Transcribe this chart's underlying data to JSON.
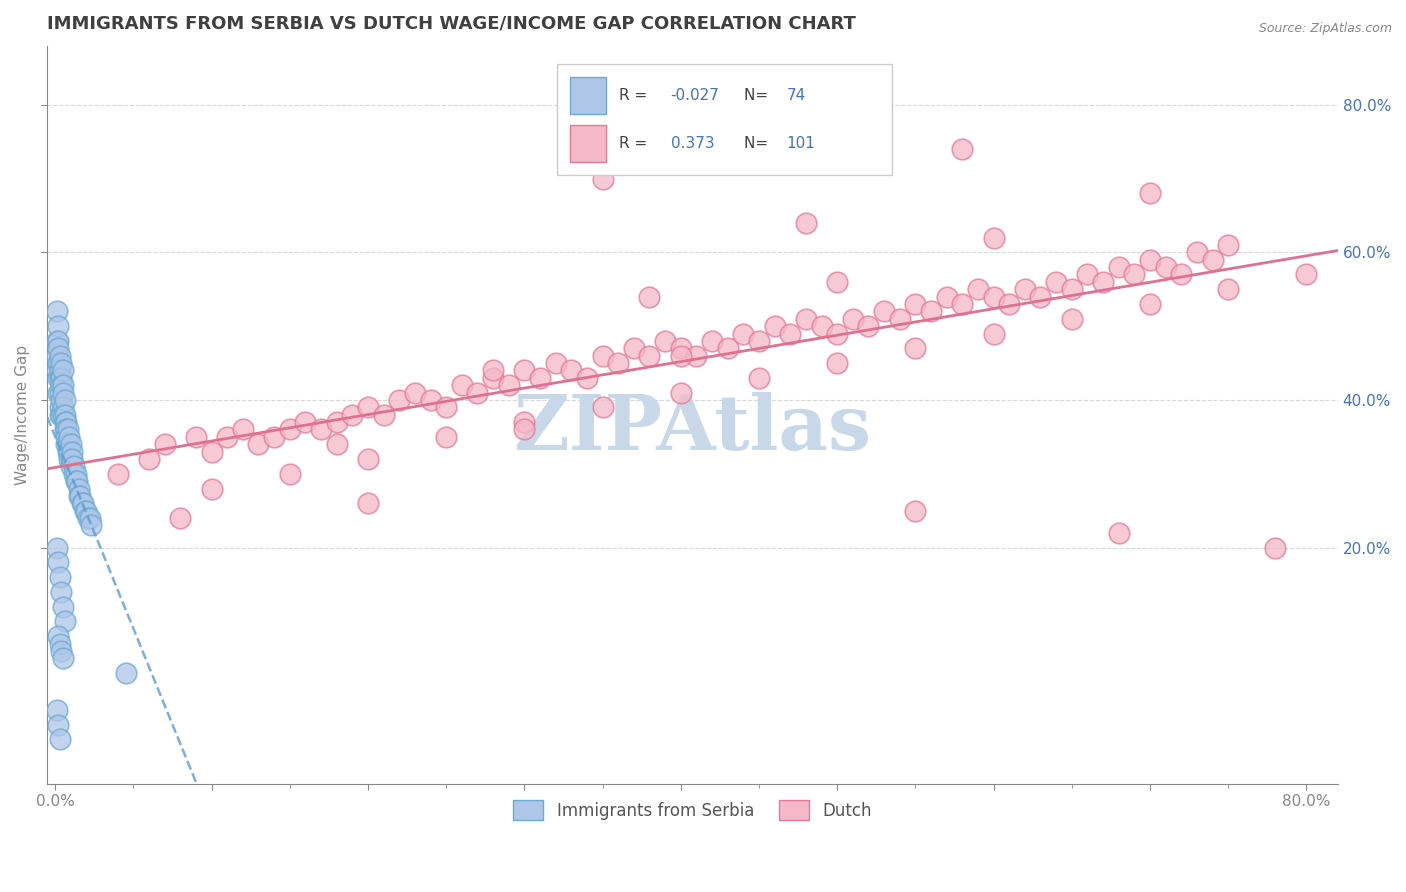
{
  "title": "IMMIGRANTS FROM SERBIA VS DUTCH WAGE/INCOME GAP CORRELATION CHART",
  "source": "Source: ZipAtlas.com",
  "ylabel": "Wage/Income Gap",
  "xlim": [
    -0.005,
    0.82
  ],
  "ylim": [
    -0.12,
    0.88
  ],
  "watermark": "ZIPAtlas",
  "series": [
    {
      "name": "Immigrants from Serbia",
      "R": -0.027,
      "N": 74,
      "color_fill": "#aec6e8",
      "color_edge": "#6aaad4",
      "trend_color": "#5b9bd5",
      "trend_style": "dashed",
      "x": [
        0.001,
        0.001,
        0.001,
        0.001,
        0.002,
        0.002,
        0.002,
        0.002,
        0.002,
        0.002,
        0.003,
        0.003,
        0.003,
        0.003,
        0.003,
        0.003,
        0.004,
        0.004,
        0.004,
        0.004,
        0.004,
        0.005,
        0.005,
        0.005,
        0.005,
        0.005,
        0.006,
        0.006,
        0.006,
        0.006,
        0.007,
        0.007,
        0.007,
        0.007,
        0.008,
        0.008,
        0.008,
        0.009,
        0.009,
        0.009,
        0.01,
        0.01,
        0.01,
        0.011,
        0.011,
        0.012,
        0.012,
        0.013,
        0.013,
        0.014,
        0.015,
        0.015,
        0.016,
        0.017,
        0.018,
        0.019,
        0.02,
        0.021,
        0.022,
        0.023,
        0.001,
        0.002,
        0.003,
        0.004,
        0.005,
        0.006,
        0.002,
        0.003,
        0.004,
        0.005,
        0.001,
        0.002,
        0.003,
        0.045
      ],
      "y": [
        0.52,
        0.48,
        0.46,
        0.44,
        0.5,
        0.48,
        0.47,
        0.45,
        0.43,
        0.41,
        0.46,
        0.44,
        0.43,
        0.41,
        0.39,
        0.38,
        0.45,
        0.43,
        0.42,
        0.4,
        0.38,
        0.44,
        0.42,
        0.41,
        0.39,
        0.38,
        0.4,
        0.38,
        0.37,
        0.36,
        0.37,
        0.36,
        0.35,
        0.34,
        0.36,
        0.34,
        0.33,
        0.35,
        0.33,
        0.32,
        0.34,
        0.32,
        0.31,
        0.33,
        0.32,
        0.31,
        0.3,
        0.3,
        0.29,
        0.29,
        0.28,
        0.27,
        0.27,
        0.26,
        0.26,
        0.25,
        0.25,
        0.24,
        0.24,
        0.23,
        0.2,
        0.18,
        0.16,
        0.14,
        0.12,
        0.1,
        0.08,
        0.07,
        0.06,
        0.05,
        -0.02,
        -0.04,
        -0.06,
        0.03
      ]
    },
    {
      "name": "Dutch",
      "R": 0.373,
      "N": 101,
      "color_fill": "#f4b8c8",
      "color_edge": "#e87898",
      "trend_color": "#e07090",
      "trend_style": "solid",
      "x": [
        0.04,
        0.06,
        0.07,
        0.09,
        0.1,
        0.11,
        0.12,
        0.13,
        0.14,
        0.15,
        0.16,
        0.17,
        0.18,
        0.19,
        0.2,
        0.21,
        0.22,
        0.23,
        0.24,
        0.25,
        0.26,
        0.27,
        0.28,
        0.29,
        0.3,
        0.31,
        0.32,
        0.33,
        0.34,
        0.35,
        0.36,
        0.37,
        0.38,
        0.39,
        0.4,
        0.41,
        0.42,
        0.43,
        0.44,
        0.45,
        0.46,
        0.47,
        0.48,
        0.49,
        0.5,
        0.51,
        0.52,
        0.53,
        0.54,
        0.55,
        0.56,
        0.57,
        0.58,
        0.59,
        0.6,
        0.61,
        0.62,
        0.63,
        0.64,
        0.65,
        0.66,
        0.67,
        0.68,
        0.69,
        0.7,
        0.71,
        0.72,
        0.73,
        0.74,
        0.75,
        0.1,
        0.15,
        0.2,
        0.25,
        0.3,
        0.35,
        0.4,
        0.45,
        0.5,
        0.55,
        0.6,
        0.65,
        0.7,
        0.75,
        0.8,
        0.2,
        0.3,
        0.4,
        0.5,
        0.6,
        0.7,
        0.08,
        0.18,
        0.28,
        0.38,
        0.48,
        0.58,
        0.68,
        0.78,
        0.35,
        0.55
      ],
      "y": [
        0.3,
        0.32,
        0.34,
        0.35,
        0.33,
        0.35,
        0.36,
        0.34,
        0.35,
        0.36,
        0.37,
        0.36,
        0.37,
        0.38,
        0.39,
        0.38,
        0.4,
        0.41,
        0.4,
        0.39,
        0.42,
        0.41,
        0.43,
        0.42,
        0.44,
        0.43,
        0.45,
        0.44,
        0.43,
        0.46,
        0.45,
        0.47,
        0.46,
        0.48,
        0.47,
        0.46,
        0.48,
        0.47,
        0.49,
        0.48,
        0.5,
        0.49,
        0.51,
        0.5,
        0.49,
        0.51,
        0.5,
        0.52,
        0.51,
        0.53,
        0.52,
        0.54,
        0.53,
        0.55,
        0.54,
        0.53,
        0.55,
        0.54,
        0.56,
        0.55,
        0.57,
        0.56,
        0.58,
        0.57,
        0.59,
        0.58,
        0.57,
        0.6,
        0.59,
        0.61,
        0.28,
        0.3,
        0.32,
        0.35,
        0.37,
        0.39,
        0.41,
        0.43,
        0.45,
        0.47,
        0.49,
        0.51,
        0.53,
        0.55,
        0.57,
        0.26,
        0.36,
        0.46,
        0.56,
        0.62,
        0.68,
        0.24,
        0.34,
        0.44,
        0.54,
        0.64,
        0.74,
        0.22,
        0.2,
        0.7,
        0.25
      ]
    }
  ],
  "legend_R1": "-0.027",
  "legend_N1": "74",
  "legend_R2": "0.373",
  "legend_N2": "101",
  "title_color": "#404040",
  "title_fontsize": 13,
  "axis_color": "#888888",
  "grid_color": "#d8d8d8",
  "watermark_color": "#c8d8e8",
  "watermark_fontsize": 55,
  "legend_text_color": "#4472c4",
  "yticks": [
    0.2,
    0.4,
    0.6,
    0.8
  ],
  "ytick_labels": [
    "20.0%",
    "40.0%",
    "60.0%",
    "80.0%"
  ],
  "xtick_left": "0.0%",
  "xtick_right": "80.0%"
}
